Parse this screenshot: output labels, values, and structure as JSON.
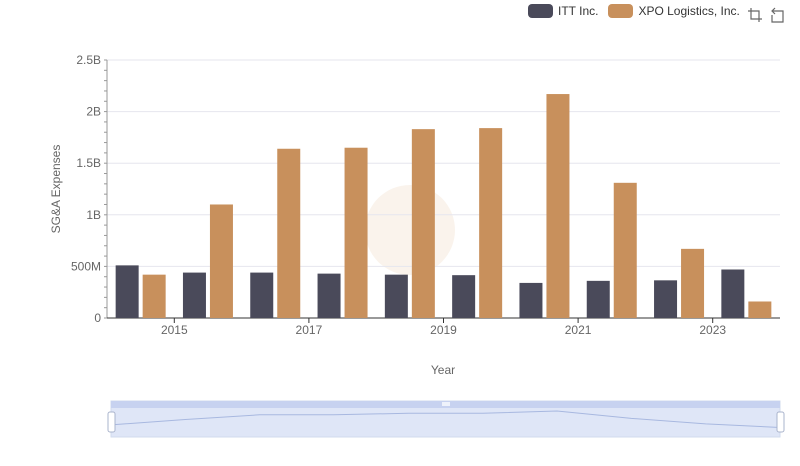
{
  "chart_data": {
    "type": "bar",
    "title": "",
    "xlabel": "Year",
    "ylabel": "SG&A Expenses",
    "categories": [
      "2014",
      "2015",
      "2016",
      "2017",
      "2018",
      "2019",
      "2020",
      "2021",
      "2022",
      "2023"
    ],
    "x_tick_labels": [
      "2015",
      "2017",
      "2019",
      "2021",
      "2023"
    ],
    "y_tick_labels": [
      "0",
      "500M",
      "1B",
      "1.5B",
      "2B",
      "2.5B"
    ],
    "ylim": [
      0,
      2500000000
    ],
    "grid": true,
    "legend_position": "top-right",
    "series": [
      {
        "name": "ITT Inc.",
        "color": "#4a4a5a",
        "values": [
          510000000,
          440000000,
          440000000,
          430000000,
          420000000,
          415000000,
          340000000,
          360000000,
          365000000,
          470000000
        ]
      },
      {
        "name": "XPO Logistics, Inc.",
        "color": "#c8905c",
        "values": [
          420000000,
          1100000000,
          1640000000,
          1650000000,
          1830000000,
          1840000000,
          2170000000,
          1310000000,
          670000000,
          160000000
        ]
      }
    ]
  },
  "toolbox": {
    "zoom_icon": "zoom-icon",
    "restore_icon": "restore-icon"
  }
}
